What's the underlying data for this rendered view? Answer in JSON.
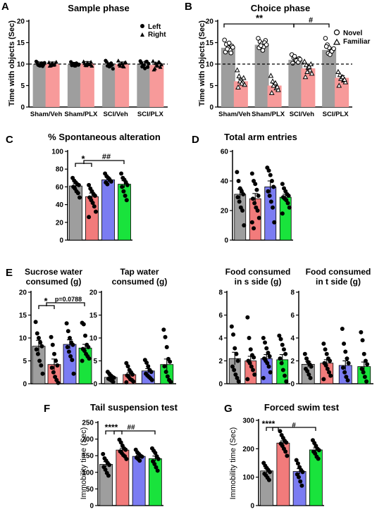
{
  "colors": {
    "gray": "#9e9e9e",
    "red": "#f27b7b",
    "blue": "#7b7cf2",
    "green": "#19e33c",
    "pink": "#f79a9a",
    "ink": "#000000"
  },
  "panels": {
    "A": {
      "letter": "A",
      "title": "Sample phase",
      "ylabel": "Time with objects (Sec)",
      "legend": [
        "Left",
        "Right"
      ]
    },
    "B": {
      "letter": "B",
      "title": "Choice phase",
      "ylabel": "Time with objects (Sec)",
      "legend": [
        "Novel",
        "Familiar"
      ],
      "sig_left": "**",
      "sig_right": "#"
    },
    "C": {
      "letter": "C",
      "title": "% Spontaneous alteration",
      "sig_left": "*",
      "sig_right": "##"
    },
    "D": {
      "letter": "D",
      "title": "Total arm entries"
    },
    "E": {
      "letter": "E",
      "sig_left": "*",
      "p_value": "p=0.0788"
    },
    "E1": {
      "title_line1": "Sucrose water",
      "title_line2": "consumed (g)"
    },
    "E2": {
      "title_line1": "Tap water",
      "title_line2": "consumed (g)"
    },
    "E3": {
      "title_line1": "Food consumed",
      "title_line2": "in s side (g)"
    },
    "E4": {
      "title_line1": "Food consumed",
      "title_line2": "in t side (g)"
    },
    "F": {
      "letter": "F",
      "title": "Tail suspension test",
      "ylabel": "Immobility time (Sec)",
      "sig_left": "****",
      "sig_right": "##"
    },
    "G": {
      "letter": "G",
      "title": "Forced swim test",
      "ylabel": "Immobility time (Sec)",
      "sig_left": "****",
      "sig_right": "#"
    }
  },
  "chart_data": [
    {
      "id": "A",
      "type": "bar",
      "title": "Sample phase",
      "ylabel": "Time with objects (Sec)",
      "ylim": [
        0,
        20
      ],
      "yticks": [
        0,
        5,
        10,
        15,
        20
      ],
      "categories": [
        "Sham/Veh",
        "Sham/PLX",
        "SCI/Veh",
        "SCI/PLX"
      ],
      "reference_line": 10,
      "series": [
        {
          "name": "Left",
          "color": "gray",
          "marker": "circle",
          "values": [
            10.0,
            9.9,
            9.8,
            10.0
          ],
          "points": [
            [
              10.6,
              9.8,
              9.6,
              10.2,
              9.9,
              10.4,
              9.7,
              10.1,
              9.5,
              10.3
            ],
            [
              10.5,
              9.9,
              9.6,
              10.2,
              9.8,
              9.7,
              10.1,
              9.6,
              10.0,
              9.9
            ],
            [
              10.8,
              9.6,
              9.4,
              10.2,
              8.9,
              10.5,
              10.0,
              9.5,
              9.8
            ],
            [
              10.7,
              9.4,
              9.8,
              10.5,
              9.3,
              10.3,
              9.7,
              9.0,
              10.6,
              10.1
            ]
          ]
        },
        {
          "name": "Right",
          "color": "pink",
          "marker": "triangle",
          "values": [
            10.0,
            10.1,
            10.0,
            9.8
          ],
          "points": [
            [
              10.4,
              9.7,
              10.2,
              9.9,
              10.5,
              9.6,
              10.1,
              9.8
            ],
            [
              10.6,
              9.8,
              10.3,
              9.9,
              10.5,
              10.2,
              9.7,
              10.1,
              10.0,
              9.6
            ],
            [
              10.8,
              9.6,
              10.2,
              9.4,
              10.4,
              9.9,
              10.1,
              9.5,
              10.3
            ],
            [
              10.7,
              9.0,
              9.8,
              10.5,
              9.3,
              8.7,
              10.2,
              9.6,
              10.4,
              9.9
            ]
          ]
        }
      ]
    },
    {
      "id": "B",
      "type": "bar",
      "title": "Choice phase",
      "ylabel": "Time with objects (Sec)",
      "ylim": [
        0,
        20
      ],
      "yticks": [
        0,
        5,
        10,
        15,
        20
      ],
      "categories": [
        "Sham/Veh",
        "Sham/PLX",
        "SCI/Veh",
        "SCI/PLX"
      ],
      "reference_line": 10,
      "series": [
        {
          "name": "Novel",
          "color": "gray",
          "marker": "open-circle",
          "values": [
            13.8,
            14.5,
            11.0,
            13.3
          ],
          "points": [
            [
              15.6,
              14.6,
              13.8,
              13.2,
              14.2,
              12.8,
              13.5,
              14.9,
              12.6,
              13.9
            ],
            [
              16.0,
              15.2,
              14.7,
              14.0,
              15.5,
              13.8,
              14.3,
              13.2,
              15.0,
              14.5
            ],
            [
              12.2,
              11.5,
              11.0,
              10.6,
              11.3,
              10.2,
              11.8,
              10.8,
              10.4,
              11.1
            ],
            [
              16.0,
              14.5,
              13.8,
              12.9,
              13.4,
              14.1,
              12.5,
              12.2,
              13.0,
              13.6
            ]
          ]
        },
        {
          "name": "Familiar",
          "color": "pink",
          "marker": "open-triangle",
          "values": [
            6.0,
            5.0,
            9.0,
            6.8
          ],
          "points": [
            [
              8.6,
              7.2,
              6.4,
              5.8,
              5.2,
              4.6,
              6.0,
              5.5,
              6.8
            ],
            [
              7.3,
              6.0,
              5.2,
              4.4,
              4.0,
              3.3,
              5.0,
              5.6,
              4.7
            ],
            [
              10.6,
              9.8,
              9.2,
              8.6,
              7.8,
              7.0,
              8.2,
              9.4,
              10.0
            ],
            [
              8.2,
              7.5,
              6.9,
              6.2,
              5.8,
              5.0,
              6.6,
              7.0,
              6.4
            ]
          ]
        }
      ]
    },
    {
      "id": "C",
      "type": "bar",
      "title": "% Spontaneous alteration",
      "ylim": [
        0,
        100
      ],
      "yticks": [
        0,
        20,
        40,
        60,
        80,
        100
      ],
      "series": [
        {
          "color": "gray",
          "value": 61,
          "sem": 2.5,
          "points": [
            70,
            67,
            65,
            63,
            62,
            60,
            58,
            55,
            53,
            48
          ]
        },
        {
          "color": "red",
          "value": 49,
          "sem": 4,
          "points": [
            62,
            58,
            55,
            52,
            50,
            48,
            45,
            42,
            38,
            32,
            26
          ]
        },
        {
          "color": "blue",
          "value": 68,
          "sem": 2.5,
          "points": [
            75,
            72,
            70,
            68,
            66,
            65,
            63
          ]
        },
        {
          "color": "green",
          "value": 63,
          "sem": 4,
          "points": [
            75,
            70,
            68,
            65,
            62,
            60,
            55,
            50,
            45
          ]
        }
      ]
    },
    {
      "id": "D",
      "type": "bar",
      "title": "Total arm entries",
      "ylim": [
        0,
        60
      ],
      "yticks": [
        0,
        20,
        40,
        60
      ],
      "series": [
        {
          "color": "gray",
          "value": 31,
          "sem": 3.5,
          "points": [
            46,
            40,
            35,
            33,
            31,
            29,
            26,
            22,
            20,
            10
          ]
        },
        {
          "color": "red",
          "value": 28,
          "sem": 3.5,
          "points": [
            45,
            40,
            38,
            34,
            30,
            28,
            25,
            22,
            20,
            15,
            12,
            8
          ]
        },
        {
          "color": "blue",
          "value": 36,
          "sem": 4,
          "points": [
            49,
            47,
            44,
            40,
            36,
            33,
            30,
            26,
            22,
            12
          ]
        },
        {
          "color": "green",
          "value": 29,
          "sem": 2,
          "points": [
            38,
            35,
            33,
            31,
            30,
            29,
            28,
            27,
            25,
            22,
            18
          ]
        }
      ]
    },
    {
      "id": "E1",
      "type": "bar",
      "title": "Sucrose water consumed (g)",
      "ylim": [
        0,
        20
      ],
      "yticks": [
        0,
        5,
        10,
        15,
        20
      ],
      "series": [
        {
          "color": "gray",
          "value": 8.2,
          "sem": 1.3,
          "points": [
            13.5,
            11,
            10,
            9,
            8.2,
            7.5,
            6.5,
            5,
            4,
            2.2
          ]
        },
        {
          "color": "red",
          "value": 4.2,
          "sem": 1.2,
          "points": [
            10.2,
            8.5,
            6.5,
            5,
            4,
            3.5,
            2.5,
            1.5,
            0.8,
            0.2
          ]
        },
        {
          "color": "blue",
          "value": 8.6,
          "sem": 1,
          "points": [
            13.2,
            11.5,
            10,
            9,
            8.5,
            8,
            7,
            6,
            5.2,
            2.2
          ]
        },
        {
          "color": "green",
          "value": 7.8,
          "sem": 0.8,
          "points": [
            13.3,
            13,
            10.5,
            8.5,
            8,
            7.6,
            7.2,
            6.5,
            6,
            5.5,
            5
          ]
        }
      ]
    },
    {
      "id": "E2",
      "type": "bar",
      "title": "Tap water consumed (g)",
      "ylim": [
        0,
        20
      ],
      "yticks": [
        0,
        5,
        10,
        15,
        20
      ],
      "series": [
        {
          "color": "gray",
          "value": 1.4,
          "sem": 0.3,
          "points": [
            2.6,
            2.2,
            1.8,
            1.5,
            1.3,
            1.1,
            0.9,
            0.7,
            0.4
          ]
        },
        {
          "color": "red",
          "value": 2.0,
          "sem": 0.45,
          "points": [
            4.5,
            3.8,
            3,
            2.5,
            2,
            1.8,
            1.5,
            1,
            0.8,
            0.5,
            0.3
          ]
        },
        {
          "color": "blue",
          "value": 2.8,
          "sem": 0.5,
          "points": [
            5.2,
            4.6,
            3.8,
            3,
            2.6,
            2.2,
            1.8,
            1.5,
            1.2,
            0.8
          ]
        },
        {
          "color": "green",
          "value": 4.2,
          "sem": 1.2,
          "points": [
            11.8,
            10.2,
            8,
            5.4,
            4.8,
            3.8,
            2.6,
            1.6,
            0.8,
            0.4
          ]
        }
      ]
    },
    {
      "id": "E3",
      "type": "bar",
      "title": "Food consumed in s side (g)",
      "ylim": [
        0,
        8
      ],
      "yticks": [
        0,
        2,
        4,
        6,
        8
      ],
      "series": [
        {
          "color": "gray",
          "value": 2.2,
          "sem": 0.55,
          "points": [
            5,
            4.3,
            3.1,
            2.6,
            2,
            1.5,
            1.2,
            0.8,
            0.5,
            0.2
          ]
        },
        {
          "color": "red",
          "value": 2.0,
          "sem": 0.4,
          "points": [
            5.8,
            4,
            3,
            2.5,
            2.3,
            2,
            1.8,
            1.5,
            1.2,
            0.8,
            0.4
          ]
        },
        {
          "color": "blue",
          "value": 2.2,
          "sem": 0.35,
          "points": [
            4,
            3.6,
            3.1,
            2.7,
            2.4,
            2.2,
            2,
            1.8,
            1.5,
            1,
            0.5
          ]
        },
        {
          "color": "green",
          "value": 2.1,
          "sem": 0.45,
          "points": [
            4.2,
            3.9,
            3.4,
            3,
            2.6,
            2.2,
            1.8,
            1.2,
            0.7,
            0.2
          ]
        }
      ]
    },
    {
      "id": "E4",
      "type": "bar",
      "title": "Food consumed in t side (g)",
      "ylim": [
        0,
        8
      ],
      "yticks": [
        0,
        2,
        4,
        6,
        8
      ],
      "series": [
        {
          "color": "gray",
          "value": 1.7,
          "sem": 0.25,
          "points": [
            2.6,
            2.2,
            1.9,
            1.7,
            1.5,
            1.3,
            1.1,
            0.8,
            0.5
          ]
        },
        {
          "color": "red",
          "value": 1.8,
          "sem": 0.3,
          "points": [
            3.5,
            3,
            2.6,
            2.2,
            2,
            1.8,
            1.6,
            1.3,
            1,
            0.7,
            0.4
          ]
        },
        {
          "color": "blue",
          "value": 1.6,
          "sem": 0.4,
          "points": [
            4.8,
            3.5,
            2.8,
            2.2,
            1.8,
            1.4,
            1,
            0.6,
            0.3
          ]
        },
        {
          "color": "green",
          "value": 1.5,
          "sem": 0.4,
          "points": [
            4.5,
            3.8,
            2.6,
            2,
            1.7,
            1.3,
            1,
            0.6,
            0.2
          ]
        }
      ]
    },
    {
      "id": "F",
      "type": "bar",
      "title": "Tail suspension test",
      "ylabel": "Immobility time (Sec)",
      "ylim": [
        0,
        250
      ],
      "yticks": [
        0,
        50,
        100,
        150,
        200,
        250
      ],
      "series": [
        {
          "color": "gray",
          "value": 124,
          "sem": 8,
          "points": [
            155,
            142,
            135,
            128,
            122,
            116,
            108,
            98,
            90
          ]
        },
        {
          "color": "red",
          "value": 167,
          "sem": 5,
          "points": [
            198,
            190,
            180,
            172,
            168,
            163,
            158,
            152,
            148,
            140
          ]
        },
        {
          "color": "blue",
          "value": 148,
          "sem": 4,
          "points": [
            168,
            160,
            155,
            150,
            147,
            144,
            140,
            135
          ]
        },
        {
          "color": "green",
          "value": 141,
          "sem": 8,
          "points": [
            172,
            165,
            158,
            148,
            140,
            133,
            125,
            115,
            105
          ]
        }
      ]
    },
    {
      "id": "G",
      "type": "bar",
      "title": "Forced swim test",
      "ylabel": "Immobility time (Sec)",
      "ylim": [
        0,
        300
      ],
      "yticks": [
        0,
        100,
        200,
        300
      ],
      "series": [
        {
          "color": "gray",
          "value": 122,
          "sem": 8,
          "points": [
            150,
            140,
            132,
            125,
            118,
            112,
            106,
            98,
            90
          ]
        },
        {
          "color": "red",
          "value": 220,
          "sem": 8,
          "points": [
            262,
            248,
            238,
            228,
            222,
            218,
            210,
            200,
            190,
            175
          ]
        },
        {
          "color": "blue",
          "value": 120,
          "sem": 10,
          "points": [
            160,
            148,
            135,
            125,
            118,
            110,
            100,
            85,
            70
          ]
        },
        {
          "color": "green",
          "value": 196,
          "sem": 7,
          "points": [
            230,
            220,
            210,
            200,
            195,
            190,
            183,
            172,
            165
          ]
        }
      ]
    }
  ]
}
